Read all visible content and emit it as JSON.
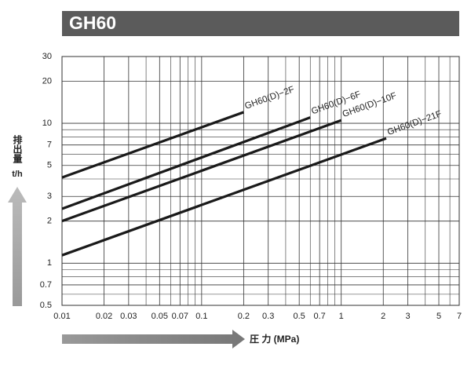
{
  "chart_data": {
    "type": "line",
    "title": "GH60",
    "y_label": "排出量",
    "y_unit": "t/h",
    "x_label": "圧 力 (MPa)",
    "log_x": true,
    "log_y": true,
    "grid": true,
    "xlim": [
      0.01,
      7
    ],
    "ylim": [
      0.5,
      30
    ],
    "xticks": [
      0.01,
      0.02,
      0.03,
      0.05,
      0.07,
      0.1,
      0.2,
      0.3,
      0.5,
      0.7,
      1,
      2,
      3,
      5,
      7
    ],
    "xminor": [
      0.04,
      0.06,
      0.08,
      0.09,
      0.4,
      0.6,
      0.8,
      0.9,
      4,
      6
    ],
    "yticks": [
      0.5,
      0.7,
      1,
      2,
      3,
      5,
      7,
      10,
      20,
      30
    ],
    "yminor": [
      0.6,
      0.8,
      0.9,
      4,
      6,
      8,
      9
    ],
    "series": [
      {
        "name": "GH60(D)−2F",
        "color": "#1a1a1a",
        "x": [
          0.01,
          0.2
        ],
        "values": [
          4.1,
          12
        ]
      },
      {
        "name": "GH60(D)−6F",
        "color": "#1a1a1a",
        "x": [
          0.01,
          0.6
        ],
        "values": [
          2.45,
          11
        ]
      },
      {
        "name": "GH60(D)−10F",
        "color": "#1a1a1a",
        "x": [
          0.01,
          1
        ],
        "values": [
          2.0,
          10.5
        ]
      },
      {
        "name": "GH60(D)−21F",
        "color": "#1a1a1a",
        "x": [
          0.01,
          2.1
        ],
        "values": [
          1.14,
          7.8
        ]
      }
    ]
  }
}
